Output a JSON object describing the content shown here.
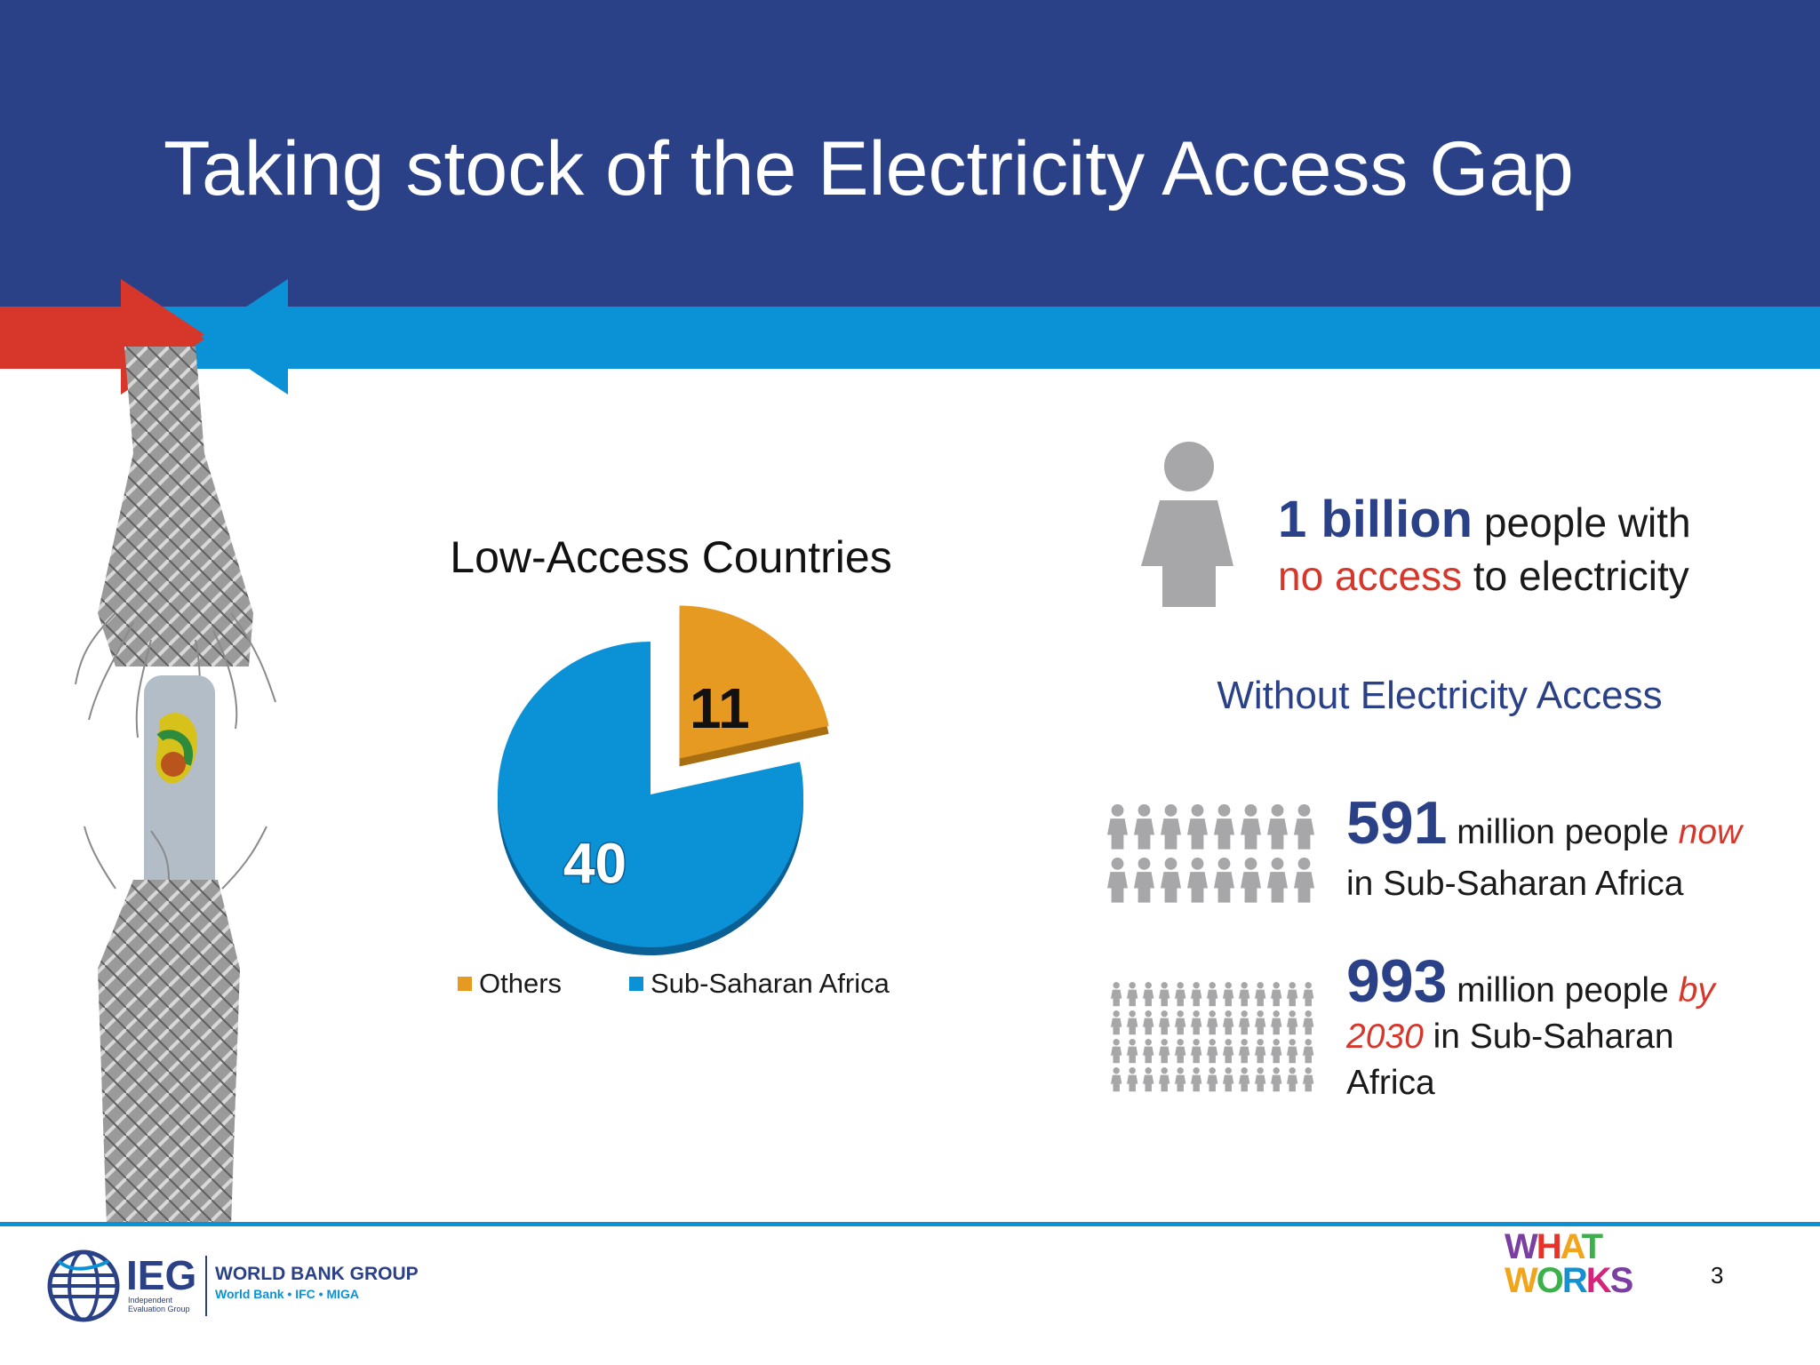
{
  "slide": {
    "title": "Taking stock of the Electricity Access Gap",
    "page_number": "3"
  },
  "colors": {
    "header_navy": "#2b4187",
    "stripe_blue": "#0b92d6",
    "accent_red": "#d7372b",
    "pie_orange": "#e69a22",
    "pie_blue": "#0b92d6",
    "icon_gray": "#a7a7aa"
  },
  "pie_chart": {
    "heading": "Low-Access Countries",
    "legend": [
      {
        "label": "Others",
        "color": "#e69a22"
      },
      {
        "label": "Sub-Saharan Africa",
        "color": "#0b92d6"
      }
    ]
  },
  "chart_data": {
    "type": "pie",
    "title": "Low-Access Countries",
    "categories": [
      "Others",
      "Sub-Saharan Africa"
    ],
    "values": [
      11,
      40
    ],
    "labels": [
      "11",
      "40"
    ],
    "exploded": [
      "Others"
    ],
    "legend_position": "bottom"
  },
  "billion_callout": {
    "icon": "person-icon",
    "number": "1 billion",
    "text_1": " people with",
    "red_text": "no access",
    "text_2": " to electricity"
  },
  "subheading": "Without Electricity Access",
  "stats": [
    {
      "icon": "people-group-icon",
      "number": "591",
      "text_a": " million people ",
      "emph": "now",
      "text_b": "in Sub-Saharan Africa"
    },
    {
      "icon": "people-crowd-icon",
      "number": "993",
      "text_a": " million people ",
      "emph": "by",
      "emph2": "2030",
      "text_b": " in Sub-Saharan",
      "text_c": "Africa"
    }
  ],
  "footer": {
    "ieg": "IEG",
    "ieg_sub_1": "Independent",
    "ieg_sub_2": "Evaluation Group",
    "wbg": "WORLD BANK GROUP",
    "wbg_sub": "World Bank • IFC • MIGA",
    "what_works_line1": "WHAT",
    "what_works_line2": "WORKS"
  }
}
